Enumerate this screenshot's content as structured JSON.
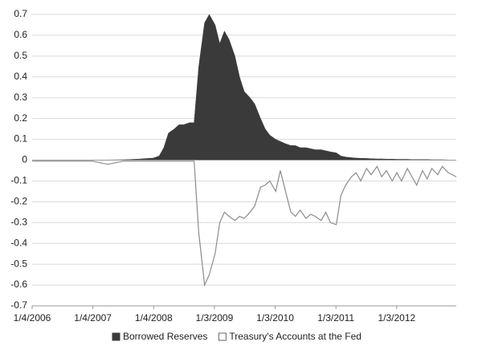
{
  "chart_data": {
    "type": "area-line",
    "x": [
      "1/4/2006",
      "4/5/2006",
      "7/5/2006",
      "10/4/2006",
      "1/3/2007",
      "4/4/2007",
      "7/4/2007",
      "10/3/2007",
      "1/2/2008",
      "2/6/2008",
      "3/5/2008",
      "4/2/2008",
      "5/7/2008",
      "6/4/2008",
      "7/2/2008",
      "8/6/2008",
      "9/3/2008",
      "10/1/2008",
      "11/5/2008",
      "12/3/2008",
      "1/7/2009",
      "2/4/2009",
      "3/4/2009",
      "4/1/2009",
      "5/6/2009",
      "6/3/2009",
      "7/1/2009",
      "8/5/2009",
      "9/2/2009",
      "10/7/2009",
      "11/4/2009",
      "12/2/2009",
      "1/6/2010",
      "2/3/2010",
      "3/3/2010",
      "4/7/2010",
      "5/5/2010",
      "6/2/2010",
      "7/7/2010",
      "8/4/2010",
      "9/1/2010",
      "10/6/2010",
      "11/3/2010",
      "12/1/2010",
      "1/5/2011",
      "2/2/2011",
      "3/2/2011",
      "4/6/2011",
      "5/4/2011",
      "6/1/2011",
      "7/6/2011",
      "8/3/2011",
      "9/7/2011",
      "10/5/2011",
      "11/2/2011",
      "12/7/2011",
      "1/4/2012",
      "2/1/2012",
      "3/7/2012",
      "4/4/2012",
      "5/2/2012",
      "6/6/2012",
      "7/4/2012",
      "8/1/2012",
      "9/5/2012",
      "10/3/2012",
      "11/7/2012",
      "12/26/2012"
    ],
    "series": [
      {
        "name": "Borrowed Reserves",
        "kind": "area",
        "color": "#3a3a3a",
        "values": [
          0.001,
          0.001,
          0.001,
          0.001,
          0.001,
          0.001,
          0.002,
          0.005,
          0.01,
          0.02,
          0.06,
          0.13,
          0.15,
          0.17,
          0.17,
          0.18,
          0.18,
          0.45,
          0.66,
          0.7,
          0.65,
          0.56,
          0.62,
          0.58,
          0.5,
          0.4,
          0.33,
          0.3,
          0.27,
          0.2,
          0.15,
          0.12,
          0.1,
          0.09,
          0.08,
          0.07,
          0.07,
          0.06,
          0.06,
          0.055,
          0.05,
          0.05,
          0.045,
          0.04,
          0.035,
          0.02,
          0.015,
          0.012,
          0.01,
          0.009,
          0.008,
          0.007,
          0.006,
          0.006,
          0.005,
          0.005,
          0.004,
          0.004,
          0.004,
          0.003,
          0.003,
          0.003,
          0.003,
          0.002,
          0.002,
          0.002,
          0.001,
          0
        ]
      },
      {
        "name": "Treasury's Accounts at the Fed",
        "kind": "line",
        "color": "#8c8c8c",
        "values": [
          -0.005,
          -0.005,
          -0.005,
          -0.005,
          -0.005,
          -0.02,
          -0.005,
          -0.005,
          -0.005,
          -0.005,
          -0.005,
          -0.005,
          -0.005,
          -0.005,
          -0.005,
          -0.005,
          -0.005,
          -0.35,
          -0.6,
          -0.55,
          -0.45,
          -0.3,
          -0.25,
          -0.27,
          -0.29,
          -0.27,
          -0.28,
          -0.25,
          -0.22,
          -0.13,
          -0.12,
          -0.1,
          -0.15,
          -0.05,
          -0.14,
          -0.25,
          -0.27,
          -0.24,
          -0.28,
          -0.26,
          -0.27,
          -0.29,
          -0.25,
          -0.3,
          -0.31,
          -0.17,
          -0.12,
          -0.08,
          -0.06,
          -0.1,
          -0.04,
          -0.07,
          -0.03,
          -0.08,
          -0.05,
          -0.1,
          -0.06,
          -0.1,
          -0.04,
          -0.08,
          -0.12,
          -0.05,
          -0.09,
          -0.04,
          -0.07,
          -0.03,
          -0.06,
          -0.08
        ]
      }
    ],
    "xlim": [
      "1/4/2006",
      "12/26/2012"
    ],
    "xticks": [
      "1/4/2006",
      "1/4/2007",
      "1/4/2008",
      "1/3/2009",
      "1/3/2010",
      "1/3/2011",
      "1/3/2012"
    ],
    "ylim": [
      -0.7,
      0.7
    ],
    "yticks": [
      -0.7,
      -0.6,
      -0.5,
      -0.4,
      -0.3,
      -0.2,
      -0.1,
      0,
      0.1,
      0.2,
      0.3,
      0.4,
      0.5,
      0.6,
      0.7
    ],
    "grid": true,
    "legend": "bottom"
  }
}
